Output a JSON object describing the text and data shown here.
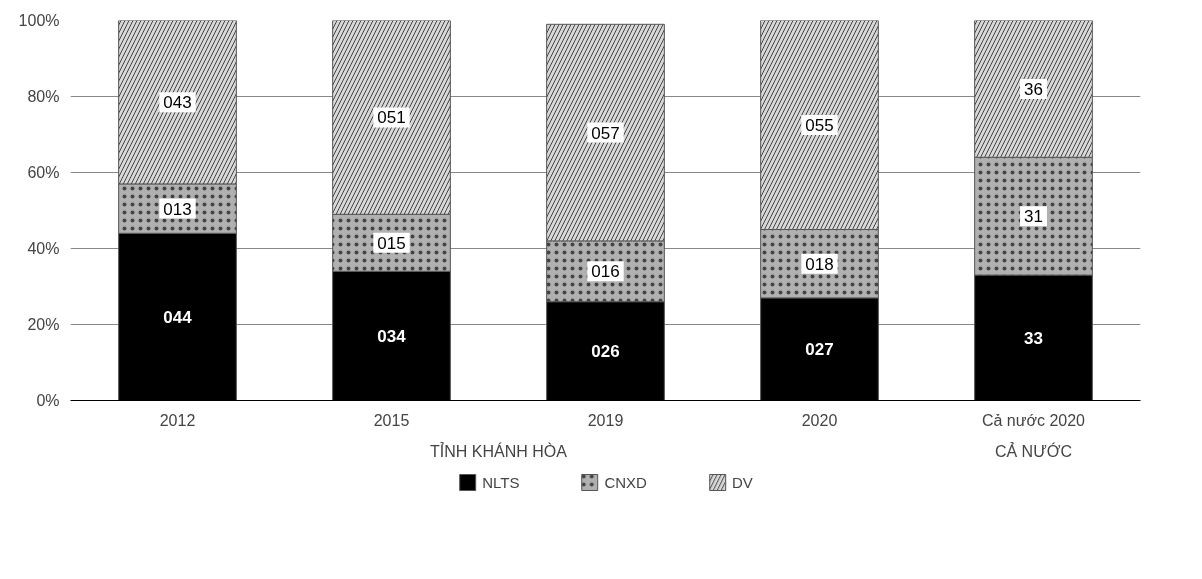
{
  "chart_data": {
    "type": "bar",
    "stacked": true,
    "categories": [
      "2012",
      "2015",
      "2019",
      "2020",
      "Cả nước 2020"
    ],
    "series": [
      {
        "name": "NLTS",
        "color": "#000000",
        "values": [
          44,
          34,
          26,
          27,
          33
        ],
        "value_labels": [
          "044",
          "034",
          "026",
          "027",
          "33"
        ]
      },
      {
        "name": "CNXD",
        "color": "#b0b0b0",
        "values": [
          13,
          15,
          16,
          18,
          31
        ],
        "value_labels": [
          "013",
          "015",
          "016",
          "018",
          "31"
        ]
      },
      {
        "name": "DV",
        "color": "#d8d8d8",
        "values": [
          43,
          51,
          57,
          55,
          36
        ],
        "value_labels": [
          "043",
          "051",
          "057",
          "055",
          "36"
        ]
      }
    ],
    "annotations": [
      "TỈNH KHÁNH HÒA",
      "CẢ NƯỚC"
    ],
    "ylim": [
      0,
      100
    ],
    "yticks": [
      {
        "value": 0,
        "label": "0%"
      },
      {
        "value": 20,
        "label": "20%"
      },
      {
        "value": 40,
        "label": "40%"
      },
      {
        "value": 60,
        "label": "60%"
      },
      {
        "value": 80,
        "label": "80%"
      },
      {
        "value": 100,
        "label": "100%"
      }
    ],
    "grid": "y",
    "legend": "bottom"
  }
}
